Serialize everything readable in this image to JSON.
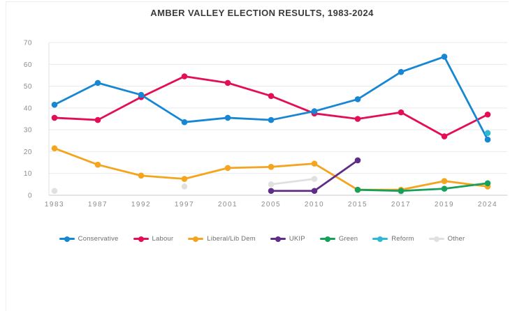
{
  "chart_data": {
    "type": "line",
    "title": "AMBER VALLEY ELECTION RESULTS, 1983-2024",
    "categories": [
      "1983",
      "1987",
      "1992",
      "1997",
      "2001",
      "2005",
      "2010",
      "2015",
      "2017",
      "2019",
      "2024"
    ],
    "xlabel": "",
    "ylabel": "",
    "ylim": [
      0,
      70
    ],
    "y_ticks": [
      0,
      10,
      20,
      30,
      40,
      50,
      60,
      70
    ],
    "grid": true,
    "legend_position": "bottom",
    "series": [
      {
        "name": "Conservative",
        "color": "#1787d3",
        "values": [
          41.5,
          51.5,
          46,
          33.5,
          35.5,
          34.5,
          38.5,
          44,
          56.5,
          63.5,
          25.5
        ]
      },
      {
        "name": "Labour",
        "color": "#e30e53",
        "values": [
          35.5,
          34.5,
          45,
          54.5,
          51.5,
          45.5,
          37.5,
          35,
          38,
          27,
          37
        ]
      },
      {
        "name": "Liberal/Lib Dem",
        "color": "#f5a41e",
        "values": [
          21.5,
          14,
          9,
          7.5,
          12.5,
          13,
          14.5,
          2.5,
          2.5,
          6.5,
          4
        ]
      },
      {
        "name": "UKIP",
        "color": "#5f2c87",
        "values": [
          null,
          null,
          null,
          null,
          null,
          2,
          2,
          16,
          null,
          null,
          null
        ]
      },
      {
        "name": "Green",
        "color": "#16a059",
        "values": [
          null,
          null,
          null,
          null,
          null,
          null,
          null,
          2.5,
          2,
          3,
          5.5
        ]
      },
      {
        "name": "Reform",
        "color": "#2cb9d4",
        "values": [
          null,
          null,
          null,
          null,
          null,
          null,
          null,
          null,
          null,
          null,
          28.5
        ]
      },
      {
        "name": "Other",
        "color": "#e0e0e0",
        "values": [
          2,
          null,
          null,
          4,
          null,
          5,
          7.5,
          null,
          1.5,
          null,
          null
        ]
      }
    ]
  }
}
